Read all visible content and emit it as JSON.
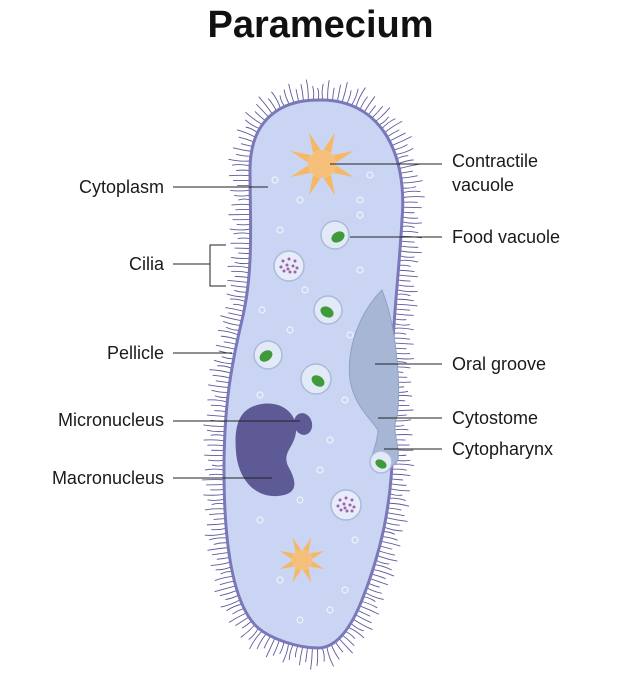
{
  "title": "Paramecium",
  "labels": {
    "cytoplasm": "Cytoplasm",
    "cilia": "Cilia",
    "pellicle": "Pellicle",
    "micronucleus": "Micronucleus",
    "macronucleus": "Macronucleus",
    "contractile_vacuole_line1": "Contractile",
    "contractile_vacuole_line2": "vacuole",
    "food_vacuole": "Food vacuole",
    "oral_groove": "Oral groove",
    "cytostome": "Cytostome",
    "cytopharynx": "Cytopharynx"
  },
  "colors": {
    "cell_fill": "#c9d5f3",
    "pellicle_outline": "#7a78b8",
    "cilia": "#5e5a9c",
    "macronucleus": "#5d5a96",
    "contractile_vacuole": "#f7c07a",
    "food_vacuole_green": "#3f9a3a",
    "oral_groove": "#9eb0cf"
  }
}
